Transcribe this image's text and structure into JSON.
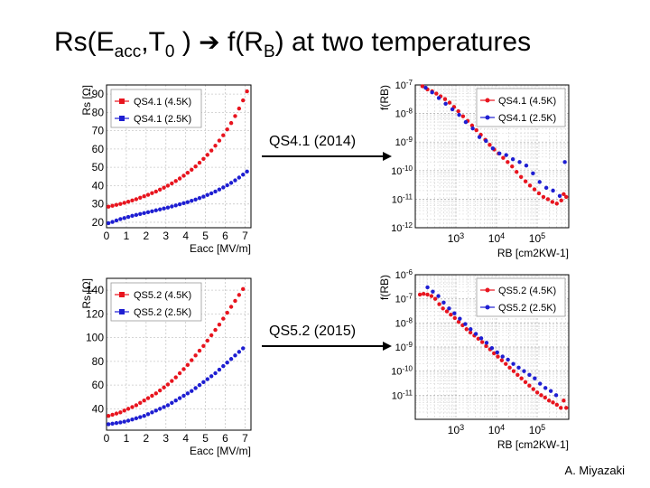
{
  "title": {
    "part1": "Rs(E",
    "sub1": "acc",
    "part2": ",T",
    "sub2": "0",
    "part3": " )",
    "arrow": "➔",
    "part4": "f(R",
    "sub3": "B",
    "part5": ") at two temperatures"
  },
  "annotations": {
    "upper": "QS4.1 (2014)",
    "lower": "QS5.2 (2015)"
  },
  "credit": "A. Miyazaki",
  "colors": {
    "warm": "#e8141e",
    "cold": "#1e1ed2",
    "grid": "#bfbfbf"
  },
  "chart_data": [
    {
      "type": "scatter",
      "xlabel": "Eacc [MV/m]",
      "ylabel": "Rs [Ω]",
      "xlim": [
        0,
        7.3
      ],
      "ylim": [
        17,
        95
      ],
      "xticks": [
        0,
        1,
        2,
        3,
        4,
        5,
        6,
        7
      ],
      "yticks": [
        20,
        30,
        40,
        50,
        60,
        70,
        80,
        90
      ],
      "grid": true,
      "legend": "top-left",
      "series": [
        {
          "name": "QS4.1 (4.5K)",
          "color": "#e8141e",
          "x": [
            0.1,
            0.3,
            0.5,
            0.7,
            0.9,
            1.1,
            1.3,
            1.5,
            1.7,
            1.9,
            2.1,
            2.3,
            2.5,
            2.7,
            2.9,
            3.1,
            3.3,
            3.5,
            3.7,
            3.9,
            4.1,
            4.3,
            4.5,
            4.7,
            4.9,
            5.1,
            5.3,
            5.5,
            5.7,
            5.9,
            6.1,
            6.3,
            6.5,
            6.7,
            6.9,
            7.1
          ],
          "y": [
            28.5,
            29,
            29.5,
            30,
            30.6,
            31.2,
            31.9,
            32.6,
            33.4,
            34.2,
            35,
            35.9,
            36.8,
            37.8,
            38.9,
            40,
            41.2,
            42.5,
            43.9,
            45.4,
            47,
            48.7,
            50.5,
            52.5,
            54.6,
            56.8,
            59.2,
            61.8,
            64.6,
            67.5,
            70.7,
            74.2,
            78,
            82.1,
            86.6,
            91.5
          ]
        },
        {
          "name": "QS4.1 (2.5K)",
          "color": "#1e1ed2",
          "x": [
            0.1,
            0.3,
            0.5,
            0.7,
            0.9,
            1.1,
            1.3,
            1.5,
            1.7,
            1.9,
            2.1,
            2.3,
            2.5,
            2.7,
            2.9,
            3.1,
            3.3,
            3.5,
            3.7,
            3.9,
            4.1,
            4.3,
            4.5,
            4.7,
            4.9,
            5.1,
            5.3,
            5.5,
            5.7,
            5.9,
            6.1,
            6.3,
            6.5,
            6.7,
            6.9,
            7.1
          ],
          "y": [
            19.5,
            20.2,
            21,
            21.7,
            22.3,
            22.9,
            23.5,
            24,
            24.5,
            25,
            25.5,
            26,
            26.5,
            27,
            27.5,
            28,
            28.6,
            29.2,
            29.8,
            30.4,
            31,
            31.7,
            32.4,
            33.2,
            34,
            34.9,
            35.8,
            36.8,
            37.9,
            39,
            40.2,
            41.5,
            42.9,
            44.4,
            46,
            47.7
          ]
        }
      ]
    },
    {
      "type": "scatter",
      "xlabel": "RB [cm2KW-1]",
      "ylabel": "f(RB)",
      "log_x": true,
      "log_y": true,
      "xlim": [
        100,
        600000
      ],
      "ylim": [
        1e-12,
        1e-07
      ],
      "xticks": [
        "10^3",
        "10^4",
        "10^5"
      ],
      "yticks": [
        "10^-12",
        "10^-11",
        "10^-10",
        "10^-9",
        "10^-8",
        "10^-7"
      ],
      "grid": true,
      "legend": "top-right",
      "series": [
        {
          "name": "QS4.1 (4.5K)",
          "color": "#e8141e",
          "x": [
            150,
            200,
            260,
            330,
            420,
            540,
            700,
            900,
            1150,
            1500,
            1950,
            2500,
            3200,
            4100,
            5300,
            6800,
            8800,
            11300,
            14600,
            18800,
            24200,
            31200,
            40200,
            51800,
            66700,
            86000,
            110800,
            142800,
            184000,
            237000,
            305000,
            393000,
            450000,
            520000
          ],
          "y": [
            9e-08,
            7e-08,
            6e-08,
            5e-08,
            4e-08,
            3.2e-08,
            2.4e-08,
            1.7e-08,
            1.2e-08,
            8e-09,
            5.5e-09,
            3.8e-09,
            2.6e-09,
            1.8e-09,
            1.2e-09,
            8e-10,
            5.5e-10,
            4e-10,
            2.8e-10,
            2e-10,
            1.4e-10,
            9e-11,
            6e-11,
            4.2e-11,
            3e-11,
            2.2e-11,
            1.6e-11,
            1.2e-11,
            1e-11,
            8e-12,
            7e-12,
            9e-12,
            1.5e-11,
            1.2e-11
          ]
        },
        {
          "name": "QS4.1 (2.5K)",
          "color": "#1e1ed2",
          "x": [
            180,
            260,
            380,
            560,
            820,
            1200,
            1750,
            2600,
            3800,
            5500,
            8100,
            11800,
            17300,
            25300,
            37000,
            54000,
            79000,
            115000,
            168000,
            246000,
            360000,
            480000
          ],
          "y": [
            8e-08,
            5.5e-08,
            3.5e-08,
            2.2e-08,
            1.4e-08,
            9e-09,
            5e-09,
            3e-09,
            1.5e-09,
            1.1e-09,
            6e-10,
            4e-10,
            3.5e-10,
            2.5e-10,
            2e-10,
            1.5e-10,
            8e-11,
            4e-11,
            2.5e-11,
            2e-11,
            1.3e-11,
            2e-10
          ]
        }
      ]
    },
    {
      "type": "scatter",
      "xlabel": "Eacc [MV/m]",
      "ylabel": "Rs [Ω]",
      "xlim": [
        0,
        7.3
      ],
      "ylim": [
        22,
        150
      ],
      "xticks": [
        0,
        1,
        2,
        3,
        4,
        5,
        6,
        7
      ],
      "yticks": [
        40,
        60,
        80,
        100,
        120,
        140
      ],
      "grid": true,
      "legend": "top-left",
      "series": [
        {
          "name": "QS5.2 (4.5K)",
          "color": "#e8141e",
          "x": [
            0.1,
            0.3,
            0.5,
            0.7,
            0.9,
            1.1,
            1.3,
            1.5,
            1.7,
            1.9,
            2.1,
            2.3,
            2.5,
            2.7,
            2.9,
            3.1,
            3.3,
            3.5,
            3.7,
            3.9,
            4.1,
            4.3,
            4.5,
            4.7,
            4.9,
            5.1,
            5.3,
            5.5,
            5.7,
            5.9,
            6.1,
            6.3,
            6.5,
            6.7,
            6.9
          ],
          "y": [
            34,
            35,
            36,
            37,
            38.5,
            40,
            41.5,
            43,
            45,
            47,
            49,
            51,
            53,
            55.5,
            58,
            60.5,
            63.5,
            66.5,
            70,
            73.5,
            77,
            81,
            85,
            89,
            93,
            97.5,
            102,
            106.5,
            111,
            116,
            121,
            126,
            131,
            136,
            141
          ]
        },
        {
          "name": "QS5.2 (2.5K)",
          "color": "#1e1ed2",
          "x": [
            0.1,
            0.3,
            0.5,
            0.7,
            0.9,
            1.1,
            1.3,
            1.5,
            1.7,
            1.9,
            2.1,
            2.3,
            2.5,
            2.7,
            2.9,
            3.1,
            3.3,
            3.5,
            3.7,
            3.9,
            4.1,
            4.3,
            4.5,
            4.7,
            4.9,
            5.1,
            5.3,
            5.5,
            5.7,
            5.9,
            6.1,
            6.3,
            6.5,
            6.7,
            6.9
          ],
          "y": [
            27,
            27.5,
            28,
            28.5,
            29.2,
            30,
            31,
            32,
            33,
            34,
            35.5,
            37,
            38.5,
            40,
            41.5,
            43,
            45,
            47,
            49,
            51,
            53,
            55,
            57.5,
            60,
            62.5,
            65,
            67.5,
            70,
            73,
            76,
            79,
            82,
            85,
            88,
            91
          ]
        }
      ]
    },
    {
      "type": "scatter",
      "xlabel": "RB [cm2KW-1]",
      "ylabel": "f(RB)",
      "log_x": true,
      "log_y": true,
      "xlim": [
        100,
        600000
      ],
      "ylim": [
        1e-12,
        1e-06
      ],
      "xticks": [
        "10^3",
        "10^4",
        "10^5"
      ],
      "yticks": [
        "10^-11",
        "10^-10",
        "10^-9",
        "10^-8",
        "10^-7",
        "10^-6"
      ],
      "grid": true,
      "legend": "top-right",
      "series": [
        {
          "name": "QS5.2 (4.5K)",
          "color": "#e8141e",
          "x": [
            130,
            160,
            200,
            250,
            310,
            390,
            480,
            600,
            750,
            940,
            1170,
            1460,
            1830,
            2280,
            2850,
            3560,
            4450,
            5560,
            6950,
            8680,
            10800,
            13500,
            16900,
            21100,
            26400,
            33000,
            41200,
            51500,
            64400,
            80500,
            100600,
            125800,
            157000,
            196000,
            245000,
            306000,
            383000,
            450000,
            520000
          ],
          "y": [
            1.5e-07,
            1.6e-07,
            1.5e-07,
            1.3e-07,
            1e-07,
            6e-08,
            4e-08,
            3e-08,
            2.2e-08,
            1.6e-08,
            1.1e-08,
            8e-09,
            5.5e-09,
            4e-09,
            3e-09,
            2.2e-09,
            1.6e-09,
            1.1e-09,
            8e-10,
            5.5e-10,
            4e-10,
            2.8e-10,
            2e-10,
            1.4e-10,
            1e-10,
            7e-11,
            5e-11,
            3.5e-11,
            2.5e-11,
            1.8e-11,
            1.3e-11,
            1e-11,
            8e-12,
            6e-12,
            5e-12,
            4e-12,
            3e-12,
            6e-12,
            3e-12
          ]
        },
        {
          "name": "QS5.2 (2.5K)",
          "color": "#1e1ed2",
          "x": [
            200,
            270,
            370,
            500,
            680,
            920,
            1250,
            1700,
            2300,
            3100,
            4200,
            5700,
            7700,
            10400,
            14100,
            19100,
            25900,
            35100,
            47600,
            64500,
            87400,
            118000,
            160000,
            217000,
            294000
          ],
          "y": [
            3e-07,
            2e-07,
            1.3e-07,
            7e-08,
            4e-08,
            2.5e-08,
            1.5e-08,
            9e-09,
            5.5e-09,
            3.5e-09,
            2.3e-09,
            1.5e-09,
            9e-10,
            6e-10,
            4e-10,
            3e-10,
            2e-10,
            1.4e-10,
            1e-10,
            7e-11,
            5e-11,
            3e-11,
            2e-11,
            1.5e-11,
            1e-11
          ]
        }
      ]
    }
  ]
}
